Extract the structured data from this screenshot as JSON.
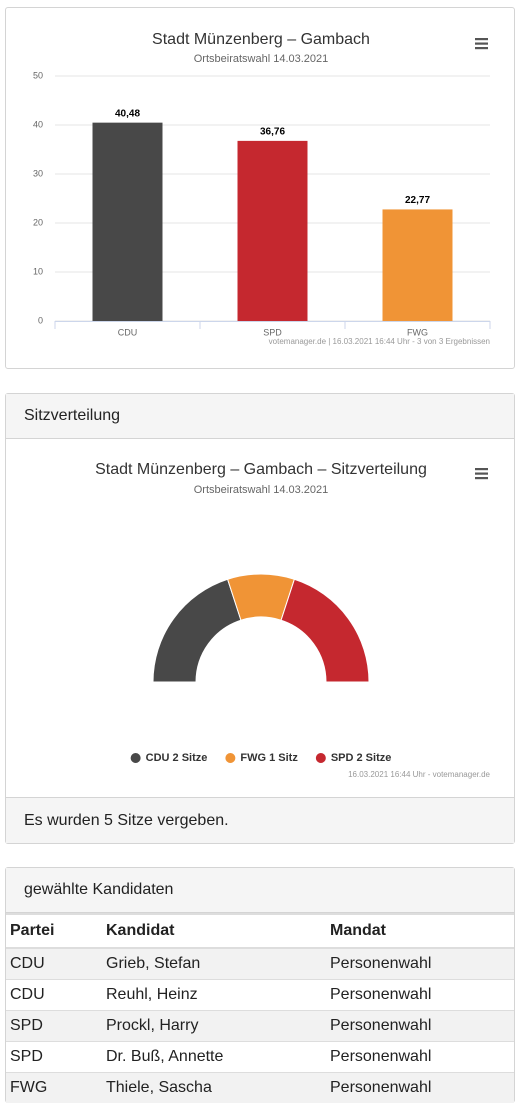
{
  "chart_data": [
    {
      "type": "bar",
      "title": "Stadt Münzenberg – Gambach",
      "subtitle": "Ortsbeiratswahl 14.03.2021",
      "categories": [
        "CDU",
        "SPD",
        "FWG"
      ],
      "values": [
        40.48,
        36.76,
        22.77
      ],
      "value_labels": [
        "40,48",
        "36,76",
        "22,77"
      ],
      "colors": [
        "#484848",
        "#c5282f",
        "#f09436"
      ],
      "ylim": [
        0,
        50
      ],
      "yticks": [
        0,
        10,
        20,
        30,
        40,
        50
      ],
      "grid": true,
      "credits": "votemanager.de | 16.03.2021 16:44 Uhr - 3 von 3 Ergebnissen"
    },
    {
      "type": "pie",
      "title": "Stadt Münzenberg – Gambach – Sitzverteilung",
      "subtitle": "Ortsbeiratswahl 14.03.2021",
      "categories": [
        "CDU 2 Sitze",
        "FWG 1 Sitz",
        "SPD 2 Sitze"
      ],
      "values": [
        2,
        1,
        2
      ],
      "colors": [
        "#484848",
        "#f09436",
        "#c5282f"
      ],
      "credits": "16.03.2021 16:44 Uhr - votemanager.de"
    }
  ],
  "seat_panel": {
    "heading": "Sitzverteilung",
    "footer": "Es wurden 5 Sitze vergeben."
  },
  "candidates": {
    "heading": "gewählte Kandidaten",
    "header": [
      "Partei",
      "Kandidat",
      "Mandat"
    ],
    "rows": [
      [
        "CDU",
        "Grieb, Stefan",
        "Personenwahl"
      ],
      [
        "CDU",
        "Reuhl, Heinz",
        "Personenwahl"
      ],
      [
        "SPD",
        "Prockl, Harry",
        "Personenwahl"
      ],
      [
        "SPD",
        "Dr. Buß, Annette",
        "Personenwahl"
      ],
      [
        "FWG",
        "Thiele, Sascha",
        "Personenwahl"
      ]
    ]
  }
}
